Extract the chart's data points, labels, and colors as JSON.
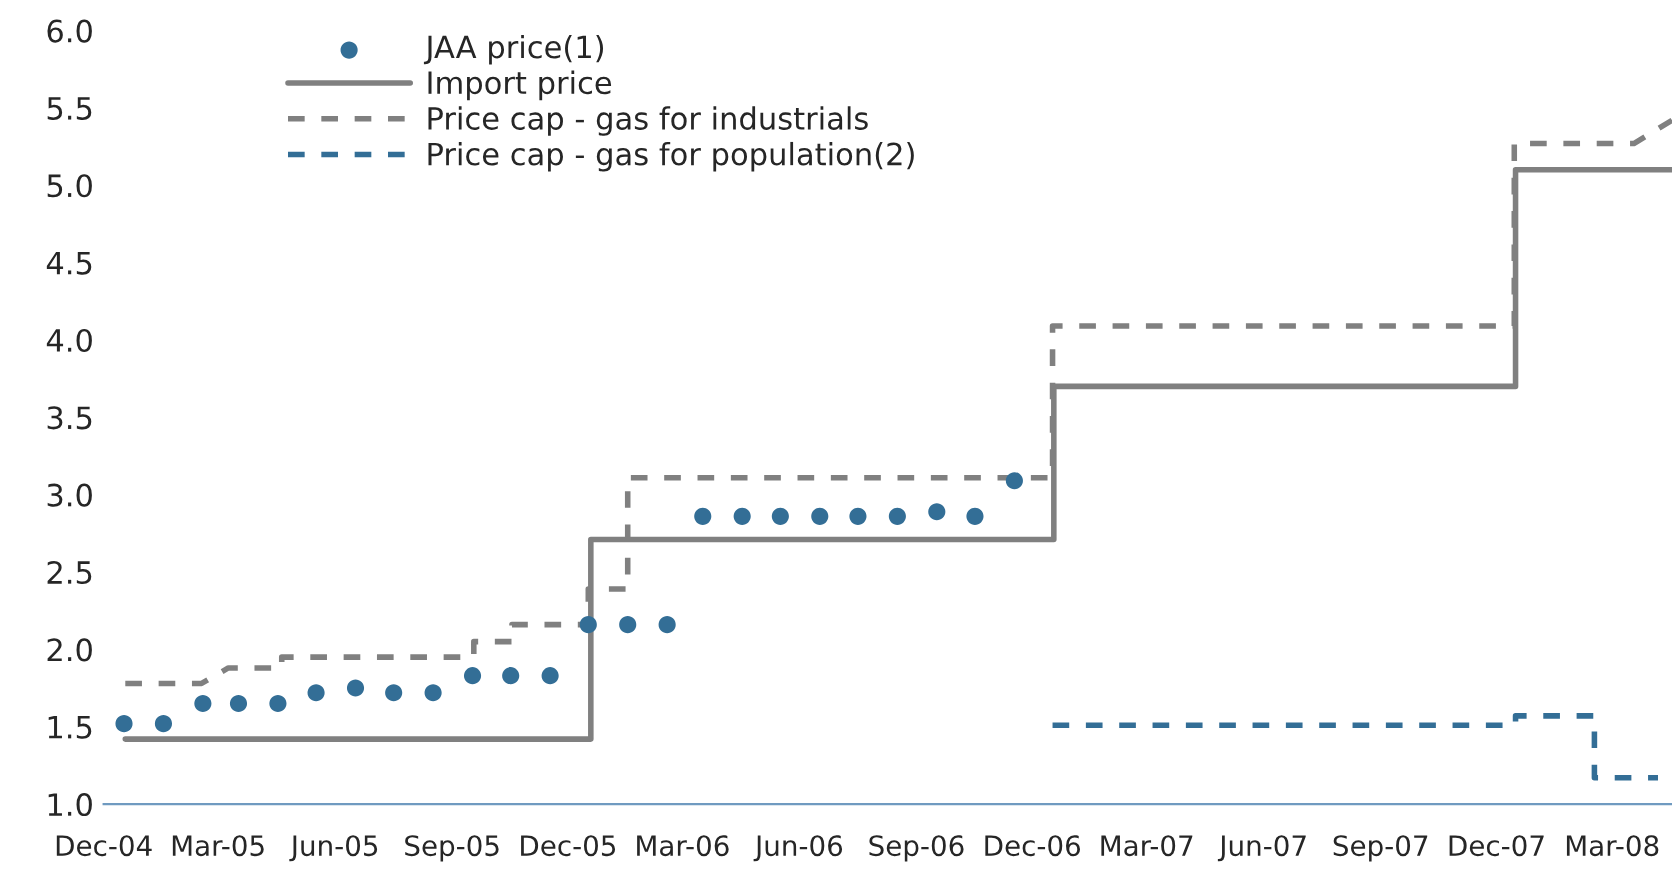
{
  "chart_data": {
    "type": "line",
    "xlim": [
      "2004-12-01",
      "2008-04-17"
    ],
    "xticks": [
      {
        "value": "2004-12-01",
        "label": "Dec-04"
      },
      {
        "value": "2005-03-01",
        "label": "Mar-05"
      },
      {
        "value": "2005-06-01",
        "label": "Jun-05"
      },
      {
        "value": "2005-09-01",
        "label": "Sep-05"
      },
      {
        "value": "2005-12-01",
        "label": "Dec-05"
      },
      {
        "value": "2006-03-01",
        "label": "Mar-06"
      },
      {
        "value": "2006-06-01",
        "label": "Jun-06"
      },
      {
        "value": "2006-09-01",
        "label": "Sep-06"
      },
      {
        "value": "2006-12-01",
        "label": "Dec-06"
      },
      {
        "value": "2007-03-01",
        "label": "Mar-07"
      },
      {
        "value": "2007-06-01",
        "label": "Jun-07"
      },
      {
        "value": "2007-09-01",
        "label": "Sep-07"
      },
      {
        "value": "2007-12-01",
        "label": "Dec-07"
      },
      {
        "value": "2008-03-01",
        "label": "Mar-08"
      }
    ],
    "ylim": [
      1,
      6
    ],
    "yticks": [
      {
        "value": 1,
        "label": "1.0"
      },
      {
        "value": 1.5,
        "label": "1.5"
      },
      {
        "value": 2,
        "label": "2.0"
      },
      {
        "value": 2.5,
        "label": "2.5"
      },
      {
        "value": 3,
        "label": "3.0"
      },
      {
        "value": 3.5,
        "label": "3.5"
      },
      {
        "value": 4,
        "label": "4.0"
      },
      {
        "value": 4.5,
        "label": "4.5"
      },
      {
        "value": 5,
        "label": "5.0"
      },
      {
        "value": 5.5,
        "label": "5.5"
      },
      {
        "value": 6,
        "label": "6.0"
      }
    ],
    "grid": false,
    "legend": "top left",
    "series": [
      {
        "name": "JAA price(1)",
        "type": "scatter",
        "marker": "circle",
        "color": "#336e96",
        "x": [
          "2004-12-17",
          "2005-01-17",
          "2005-02-17",
          "2005-03-17",
          "2005-04-17",
          "2005-05-17",
          "2005-06-17",
          "2005-07-17",
          "2005-08-17",
          "2005-09-17",
          "2005-10-17",
          "2005-11-17",
          "2005-12-17",
          "2006-01-17",
          "2006-02-17",
          "2006-03-17",
          "2006-04-17",
          "2006-05-17",
          "2006-06-17",
          "2006-07-17",
          "2006-08-17",
          "2006-09-17",
          "2006-10-17",
          "2006-11-17"
        ],
        "values": [
          1.52,
          1.52,
          1.65,
          1.65,
          1.65,
          1.72,
          1.75,
          1.72,
          1.72,
          1.83,
          1.83,
          1.83,
          2.16,
          2.16,
          2.16,
          2.86,
          2.86,
          2.86,
          2.86,
          2.86,
          2.86,
          2.89,
          2.86,
          3.09
        ]
      },
      {
        "name": "Import price",
        "type": "step",
        "line_style": "solid",
        "color": "#808080",
        "x": [
          "2004-12-18",
          "2005-12-19",
          "2006-12-18",
          "2007-12-16",
          "2008-04-17"
        ],
        "values": [
          1.42,
          2.71,
          3.7,
          5.1,
          5.1
        ]
      },
      {
        "name": "Price cap - gas for industrials",
        "line_style": "dashed",
        "color": "#808080",
        "x": [
          "2004-12-18",
          "2005-02-16",
          "2005-03-09",
          "2005-04-20",
          "2005-04-20",
          "2005-09-18",
          "2005-09-18",
          "2005-10-18",
          "2005-10-18",
          "2005-12-17",
          "2005-12-17",
          "2006-01-17",
          "2006-01-17",
          "2006-12-17",
          "2006-12-17",
          "2007-12-15",
          "2007-12-15",
          "2008-03-18",
          "2008-04-17"
        ],
        "values": [
          1.78,
          1.78,
          1.88,
          1.88,
          1.95,
          1.95,
          2.05,
          2.05,
          2.16,
          2.16,
          2.39,
          2.39,
          3.11,
          3.11,
          4.09,
          4.09,
          5.27,
          5.27,
          5.42
        ]
      },
      {
        "name": "Price cap - gas for population(2)",
        "line_style": "dashed",
        "color": "#336e96",
        "x": [
          "2006-12-17",
          "2007-12-16",
          "2007-12-16",
          "2008-02-16",
          "2008-02-16",
          "2008-04-06"
        ],
        "values": [
          1.51,
          1.51,
          1.57,
          1.57,
          1.17,
          1.17
        ]
      }
    ]
  }
}
